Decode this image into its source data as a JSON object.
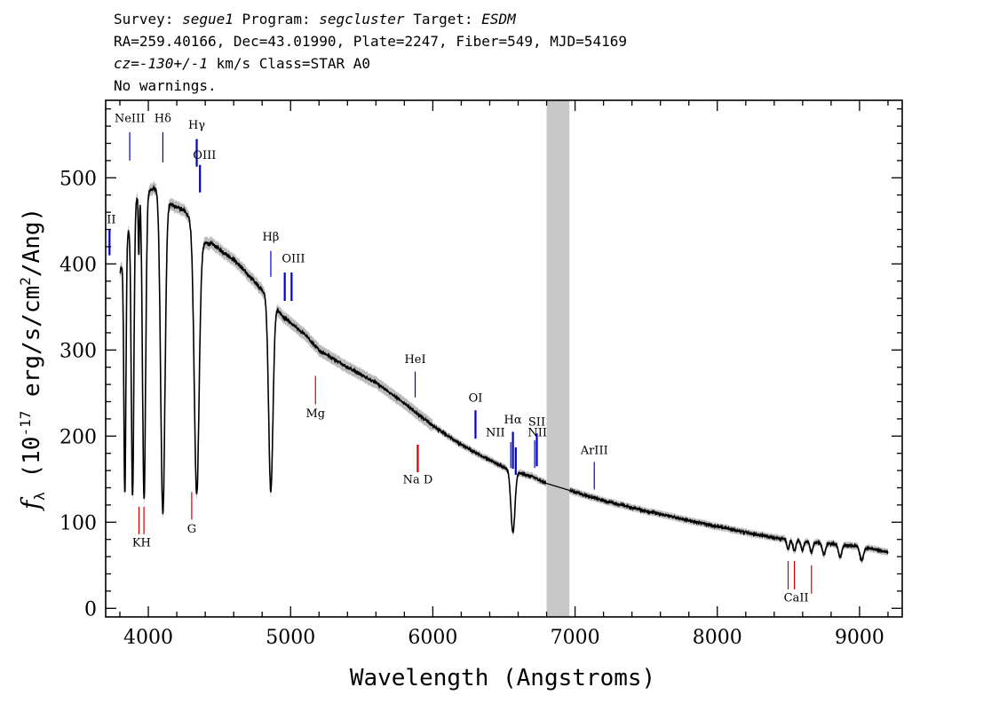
{
  "header": {
    "survey_label": "Survey:",
    "survey_value": "segue1",
    "program_label": "Program:",
    "program_value": "segcluster",
    "target_label": "Target:",
    "target_value": "ESDM",
    "line2": "RA=259.40166, Dec=43.01990, Plate=2247, Fiber=549, MJD=54169",
    "cz_label": "cz=",
    "cz_value": "-130+/-1",
    "cz_rest": " km/s Class=STAR A0",
    "line4": "No warnings."
  },
  "chart_data": {
    "type": "line",
    "xlabel": "Wavelength (Angstroms)",
    "ylabel": "f_λ (10^-17 erg/s/cm^2/Ang)",
    "xlim": [
      3700,
      9300
    ],
    "ylim": [
      -10,
      590
    ],
    "x_ticks": [
      4000,
      5000,
      6000,
      7000,
      8000,
      9000
    ],
    "y_ticks": [
      0,
      100,
      200,
      300,
      400,
      500
    ],
    "x_tick_labels": [
      "4000",
      "5000",
      "6000",
      "7000",
      "8000",
      "9000"
    ],
    "y_tick_labels": [
      "0",
      "100",
      "200",
      "300",
      "400",
      "500"
    ],
    "masked_band": [
      6800,
      6960
    ],
    "colors": {
      "spectrum": "#000000",
      "error_band": "#bbbbbb",
      "mask": "#c8c8c8",
      "emission": "#0000cc",
      "absorption": "#cc0000"
    },
    "continuum": [
      [
        3800,
        390
      ],
      [
        3830,
        405
      ],
      [
        3860,
        440
      ],
      [
        3900,
        470
      ],
      [
        3950,
        490
      ],
      [
        4000,
        485
      ],
      [
        4050,
        488
      ],
      [
        4150,
        470
      ],
      [
        4250,
        462
      ],
      [
        4330,
        445
      ],
      [
        4380,
        425
      ],
      [
        4450,
        423
      ],
      [
        4600,
        405
      ],
      [
        4800,
        370
      ],
      [
        4950,
        338
      ],
      [
        5100,
        318
      ],
      [
        5200,
        300
      ],
      [
        5400,
        280
      ],
      [
        5600,
        262
      ],
      [
        5800,
        238
      ],
      [
        6000,
        212
      ],
      [
        6200,
        190
      ],
      [
        6400,
        172
      ],
      [
        6550,
        160
      ],
      [
        6700,
        153
      ],
      [
        6800,
        145
      ],
      [
        7000,
        135
      ],
      [
        7200,
        125
      ],
      [
        7500,
        113
      ],
      [
        7800,
        102
      ],
      [
        8000,
        95
      ],
      [
        8200,
        88
      ],
      [
        8400,
        82
      ],
      [
        8600,
        78
      ],
      [
        8800,
        75
      ],
      [
        9000,
        72
      ],
      [
        9200,
        65
      ]
    ],
    "absorption_lines": [
      {
        "center": 3835,
        "depth": 0.68,
        "width": 7
      },
      {
        "center": 3889,
        "depth": 0.72,
        "width": 9
      },
      {
        "center": 3933,
        "depth": 0.15,
        "width": 4
      },
      {
        "center": 3970,
        "depth": 0.74,
        "width": 11
      },
      {
        "center": 4102,
        "depth": 0.77,
        "width": 15
      },
      {
        "center": 4340,
        "depth": 0.7,
        "width": 17
      },
      {
        "center": 4861,
        "depth": 0.62,
        "width": 15
      },
      {
        "center": 6563,
        "depth": 0.45,
        "width": 14
      },
      {
        "center": 8498,
        "depth": 0.14,
        "width": 9
      },
      {
        "center": 8542,
        "depth": 0.16,
        "width": 10
      },
      {
        "center": 8598,
        "depth": 0.14,
        "width": 9
      },
      {
        "center": 8662,
        "depth": 0.16,
        "width": 10
      },
      {
        "center": 8750,
        "depth": 0.18,
        "width": 11
      },
      {
        "center": 8863,
        "depth": 0.2,
        "width": 12
      },
      {
        "center": 9015,
        "depth": 0.22,
        "width": 13
      }
    ],
    "line_markers": [
      {
        "label": "NeIII",
        "segments": [
          [
            3869,
            553,
            520
          ]
        ],
        "color": "emission",
        "label_at": [
          3869,
          565
        ]
      },
      {
        "label": "Hδ",
        "segments": [
          [
            4102,
            553,
            518
          ]
        ],
        "color": "emission",
        "label_at": [
          4102,
          565
        ]
      },
      {
        "label": "Hγ",
        "segments": [
          [
            4340,
            545,
            513
          ]
        ],
        "color": "emission",
        "label_at": [
          4340,
          557
        ],
        "thick": true
      },
      {
        "label": "OIII",
        "segments": [
          [
            4363,
            515,
            483
          ]
        ],
        "color": "emission",
        "label_at": [
          4395,
          522
        ],
        "thick": true
      },
      {
        "label": "II",
        "segments": [
          [
            3727,
            440,
            410
          ]
        ],
        "color": "emission",
        "label_at": [
          3740,
          447
        ],
        "thick": true
      },
      {
        "label": "Hβ",
        "segments": [
          [
            4861,
            415,
            385
          ]
        ],
        "color": "emission",
        "label_at": [
          4861,
          427
        ]
      },
      {
        "label": "OIII",
        "segments": [
          [
            4959,
            390,
            357
          ],
          [
            5007,
            390,
            357
          ]
        ],
        "color": "emission",
        "label_at": [
          5020,
          402
        ],
        "thick": true
      },
      {
        "label": "HeI",
        "segments": [
          [
            5876,
            275,
            245
          ]
        ],
        "color": "emission",
        "label_at": [
          5876,
          285
        ]
      },
      {
        "label": "OI",
        "segments": [
          [
            6300,
            230,
            197
          ]
        ],
        "color": "emission",
        "label_at": [
          6300,
          240
        ],
        "thick": true
      },
      {
        "label": "NII",
        "segments": [
          [
            6548,
            193,
            163
          ]
        ],
        "color": "emission",
        "label_at": [
          6440,
          200
        ]
      },
      {
        "label": "Hα",
        "segments": [
          [
            6563,
            205,
            162
          ],
          [
            6583,
            187,
            155
          ]
        ],
        "color": "emission",
        "label_at": [
          6563,
          215
        ],
        "thick": true
      },
      {
        "label": "NII",
        "segments": [
          [
            6716,
            195,
            163
          ]
        ],
        "color": "emission",
        "label_at": [
          6735,
          200
        ]
      },
      {
        "label": "SII",
        "segments": [
          [
            6731,
            203,
            165
          ]
        ],
        "color": "emission",
        "label_at": [
          6731,
          212
        ],
        "thick": true
      },
      {
        "label": "ArIII",
        "segments": [
          [
            7135,
            170,
            138
          ]
        ],
        "color": "emission",
        "label_at": [
          7135,
          179
        ]
      },
      {
        "label": "Mg",
        "segments": [
          [
            5175,
            270,
            237
          ]
        ],
        "color": "absorption",
        "label_at": [
          5175,
          222
        ]
      },
      {
        "label": "Na D",
        "segments": [
          [
            5894,
            190,
            158
          ]
        ],
        "color": "absorption",
        "label_at": [
          5894,
          145
        ],
        "thick": true
      },
      {
        "label": "G",
        "segments": [
          [
            4305,
            135,
            103
          ]
        ],
        "color": "absorption",
        "label_at": [
          4305,
          88
        ]
      },
      {
        "label": "KH",
        "segments": [
          [
            3934,
            118,
            86
          ],
          [
            3969,
            118,
            86
          ]
        ],
        "color": "absorption",
        "label_at": [
          3952,
          72
        ]
      },
      {
        "label": "CaII",
        "segments": [
          [
            8498,
            55,
            22
          ],
          [
            8542,
            55,
            22
          ],
          [
            8662,
            50,
            17
          ]
        ],
        "color": "absorption",
        "label_at": [
          8555,
          8
        ]
      }
    ]
  }
}
